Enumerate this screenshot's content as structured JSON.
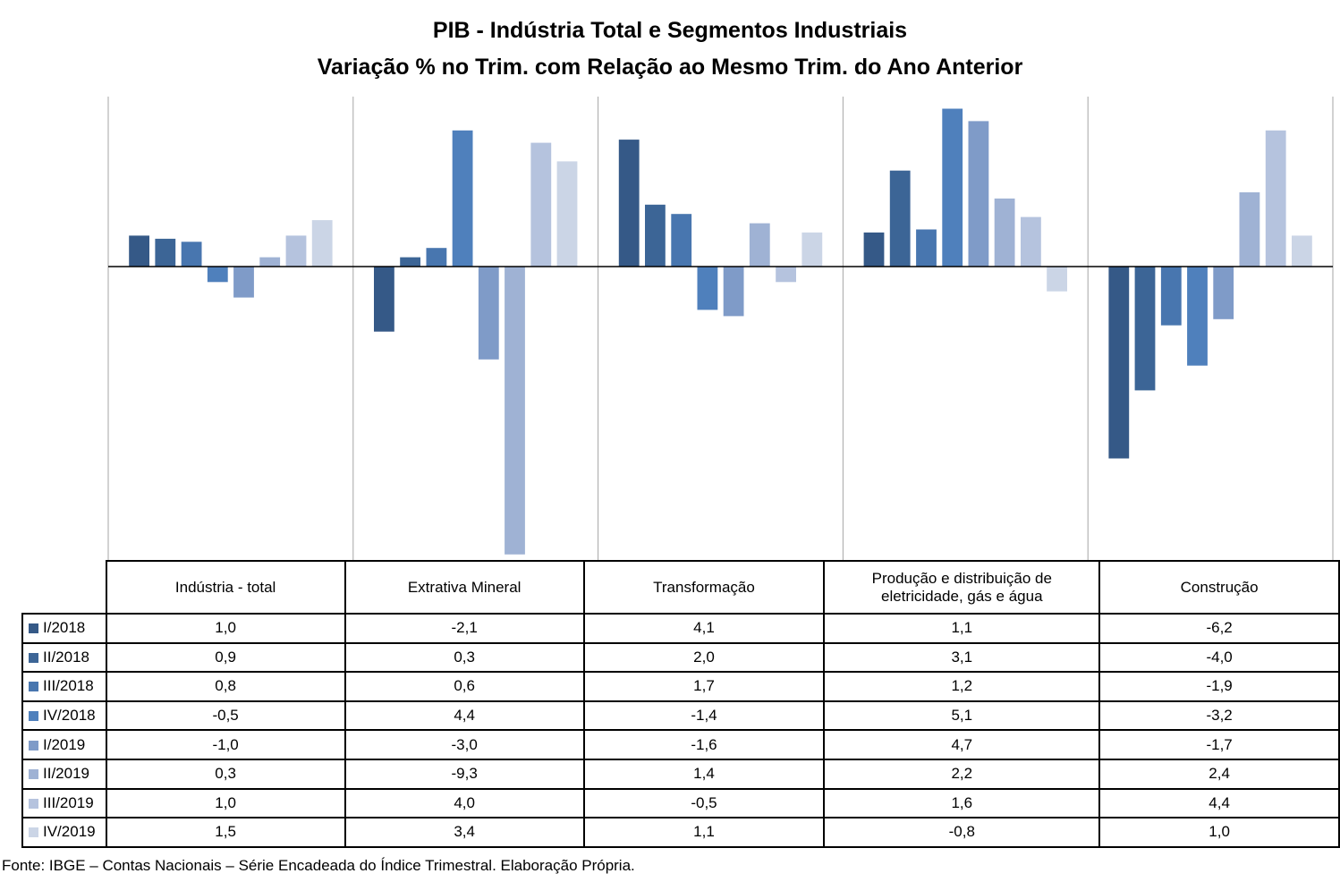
{
  "chart_data": {
    "type": "bar",
    "title": "PIB - Indústria Total e Segmentos Industriais",
    "subtitle": "Variação % no Trim. com Relação ao Mesmo Trim. do Ano Anterior",
    "xlabel": "",
    "ylabel": "",
    "ylim": [
      -9.3,
      5.1
    ],
    "grid": false,
    "legend": "table-left",
    "categories": [
      "Indústria - total",
      "Extrativa Mineral",
      "Transformação",
      "Produção e distribuição de eletricidade, gás e água",
      "Construção"
    ],
    "series": [
      {
        "name": "I/2018",
        "color": "#355987",
        "values": [
          1.0,
          -2.1,
          4.1,
          1.1,
          -6.2
        ],
        "labels": [
          "1,0",
          "-2,1",
          "4,1",
          "1,1",
          "-6,2"
        ]
      },
      {
        "name": "II/2018",
        "color": "#3c6596",
        "values": [
          0.9,
          0.3,
          2.0,
          3.1,
          -4.0
        ],
        "labels": [
          "0,9",
          "0,3",
          "2,0",
          "3,1",
          "-4,0"
        ]
      },
      {
        "name": "III/2018",
        "color": "#4876af",
        "values": [
          0.8,
          0.6,
          1.7,
          1.2,
          -1.9
        ],
        "labels": [
          "0,8",
          "0,6",
          "1,7",
          "1,2",
          "-1,9"
        ]
      },
      {
        "name": "IV/2018",
        "color": "#4f80bc",
        "values": [
          -0.5,
          4.4,
          -1.4,
          5.1,
          -3.2
        ],
        "labels": [
          "-0,5",
          "4,4",
          "-1,4",
          "5,1",
          "-3,2"
        ]
      },
      {
        "name": "I/2019",
        "color": "#7f9bc8",
        "values": [
          -1.0,
          -3.0,
          -1.6,
          4.7,
          -1.7
        ],
        "labels": [
          "-1,0",
          "-3,0",
          "-1,6",
          "4,7",
          "-1,7"
        ]
      },
      {
        "name": "II/2019",
        "color": "#9fb2d4",
        "values": [
          0.3,
          -9.3,
          1.4,
          2.2,
          2.4
        ],
        "labels": [
          "0,3",
          "-9,3",
          "1,4",
          "2,2",
          "2,4"
        ]
      },
      {
        "name": "III/2019",
        "color": "#b5c3de",
        "values": [
          1.0,
          4.0,
          -0.5,
          1.6,
          4.4
        ],
        "labels": [
          "1,0",
          "4,0",
          "-0,5",
          "1,6",
          "4,4"
        ]
      },
      {
        "name": "IV/2019",
        "color": "#cbd5e6",
        "values": [
          1.5,
          3.4,
          1.1,
          -0.8,
          1.0
        ],
        "labels": [
          "1,5",
          "3,4",
          "1,1",
          "-0,8",
          "1,0"
        ]
      }
    ]
  },
  "header": {
    "title": "PIB - Indústria Total e Segmentos Industriais",
    "subtitle": "Variação % no Trim. com Relação ao Mesmo Trim. do Ano Anterior"
  },
  "table": {
    "columns": [
      "Indústria - total",
      "Extrativa Mineral",
      "Transformação",
      "Produção e distribuição de eletricidade, gás e água",
      "Construção"
    ]
  },
  "footer": {
    "source": "Fonte: IBGE – Contas Nacionais – Série Encadeada do Índice Trimestral. Elaboração Própria."
  }
}
